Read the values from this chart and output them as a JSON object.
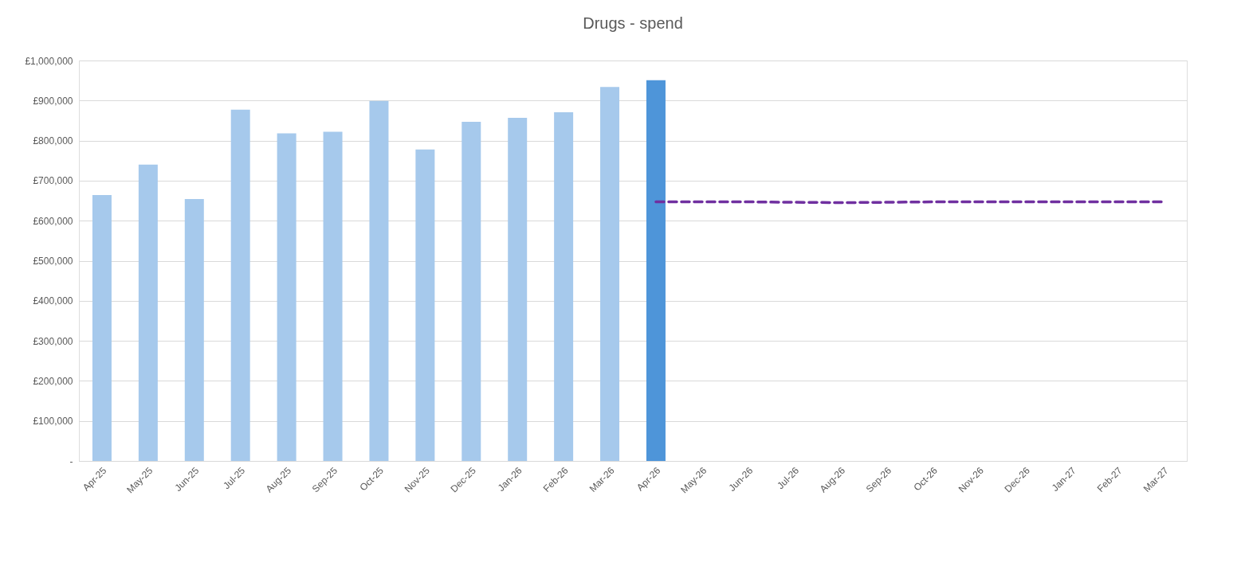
{
  "chart_data": {
    "type": "bar",
    "title": "Drugs - spend",
    "categories": [
      "Apr-25",
      "May-25",
      "Jun-25",
      "Jul-25",
      "Aug-25",
      "Sep-25",
      "Oct-25",
      "Nov-25",
      "Dec-25",
      "Jan-26",
      "Feb-26",
      "Mar-26",
      "Apr-26",
      "May-26",
      "Jun-26",
      "Jul-26",
      "Aug-26",
      "Sep-26",
      "Oct-26",
      "Nov-26",
      "Dec-26",
      "Jan-27",
      "Feb-27",
      "Mar-27"
    ],
    "series": [
      {
        "colors": [
          "#a6c9ec",
          "#a6c9ec",
          "#a6c9ec",
          "#a6c9ec",
          "#a6c9ec",
          "#a6c9ec",
          "#a6c9ec",
          "#a6c9ec",
          "#a6c9ec",
          "#a6c9ec",
          "#a6c9ec",
          "#a6c9ec",
          "#4e95d9",
          "#a6c9ec",
          "#a6c9ec",
          "#a6c9ec",
          "#a6c9ec",
          "#a6c9ec",
          "#a6c9ec",
          "#a6c9ec",
          "#a6c9ec",
          "#a6c9ec",
          "#a6c9ec",
          "#a6c9ec"
        ],
        "values": [
          664000,
          740000,
          654000,
          877000,
          818000,
          822000,
          899000,
          778000,
          847000,
          857000,
          871000,
          934000,
          951000,
          null,
          null,
          null,
          null,
          null,
          null,
          null,
          null,
          null,
          null,
          null
        ]
      },
      {
        "type": "line",
        "color": "#7030a0",
        "line_style": "dashed",
        "values": [
          null,
          null,
          null,
          null,
          null,
          null,
          null,
          null,
          null,
          null,
          null,
          null,
          647000,
          647000,
          647000,
          646000,
          645000,
          646000,
          647000,
          647000,
          647000,
          647000,
          647000,
          647000
        ]
      }
    ],
    "ylim": [
      0,
      1000000
    ],
    "yticks": [
      {
        "value": 0,
        "label": "-"
      },
      {
        "value": 100000,
        "label": "£100,000"
      },
      {
        "value": 200000,
        "label": "£200,000"
      },
      {
        "value": 300000,
        "label": "£300,000"
      },
      {
        "value": 400000,
        "label": "£400,000"
      },
      {
        "value": 500000,
        "label": "£500,000"
      },
      {
        "value": 600000,
        "label": "£600,000"
      },
      {
        "value": 700000,
        "label": "£700,000"
      },
      {
        "value": 800000,
        "label": "£800,000"
      },
      {
        "value": 900000,
        "label": "£900,000"
      },
      {
        "value": 1000000,
        "label": "£1,000,000"
      }
    ],
    "grid": "y"
  }
}
